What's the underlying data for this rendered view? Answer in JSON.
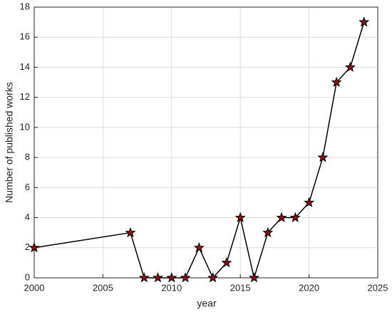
{
  "chart_data": {
    "type": "line",
    "x_label": "year",
    "y_label": "Number of published works",
    "x": [
      2000,
      2007,
      2008,
      2009,
      2010,
      2011,
      2012,
      2013,
      2014,
      2015,
      2016,
      2017,
      2018,
      2019,
      2020,
      2021,
      2022,
      2023,
      2024
    ],
    "series": [
      {
        "color": "#000000",
        "marker_color": "#8b1010",
        "marker": "star",
        "values": [
          2,
          3,
          0,
          0,
          0,
          0,
          2,
          0,
          1,
          4,
          0,
          3,
          4,
          4,
          5,
          8,
          13,
          14,
          17
        ]
      }
    ],
    "xlim": [
      2000,
      2025
    ],
    "xticks": [
      2000,
      2005,
      2010,
      2015,
      2020,
      2025
    ],
    "ylim": [
      0,
      18
    ],
    "yticks": [
      0,
      2,
      4,
      6,
      8,
      10,
      12,
      14,
      16,
      18
    ],
    "grid": true
  }
}
